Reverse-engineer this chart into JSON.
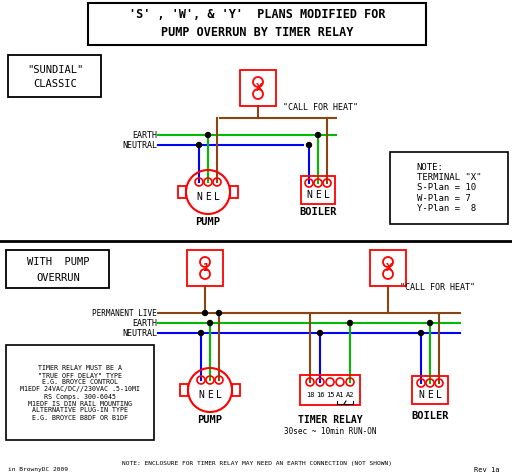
{
  "title_line1": "'S' , 'W', & 'Y'  PLANS MODIFIED FOR",
  "title_line2": "PUMP OVERRUN BY TIMER RELAY",
  "bg_color": "#ffffff",
  "c_earth": "#00bb00",
  "c_neutral": "#0000ff",
  "c_live": "#8B4513",
  "c_red": "#ff0000",
  "sundial_label": "\"SUNDIAL\"\n  CLASSIC",
  "pump_label": "PUMP",
  "boiler_label": "BOILER",
  "timer_relay_label1": "TIMER RELAY",
  "timer_relay_label2": "30sec ~ 10min RUN-ON",
  "with_pump_overrun_label1": "WITH  PUMP",
  "with_pump_overrun_label2": "OVERRUN",
  "note_text": "NOTE:\nTERMINAL \"X\"\nS-Plan = 10\nW-Plan = 7\nY-Plan =  8",
  "timer_note": "NOTE: ENCLOSURE FOR TIMER RELAY MAY NEED AN EARTH CONNECTION (NOT SHOWN)",
  "call_for_heat": "\"CALL FOR HEAT\"",
  "earth_label": "EARTH",
  "neutral_label": "NEUTRAL",
  "perm_live_label": "PERMANENT LIVE",
  "footer": "Rev 1a",
  "copyright": "in BrownyDC 2009",
  "timer_note_text": "TIMER RELAY MUST BE A\n\"TRUE OFF DELAY\" TYPE\nE.G. BROYCE CONTROL\nM1EDF 24VAC/DC//230VAC .5-10MI\nRS Comps. 300-6045\nM1EDF IS DIN RAIL MOUNTING\nALTERNATIVE PLUG-IN TYPE\nE.G. BROYCE B8DF OR B1DF"
}
